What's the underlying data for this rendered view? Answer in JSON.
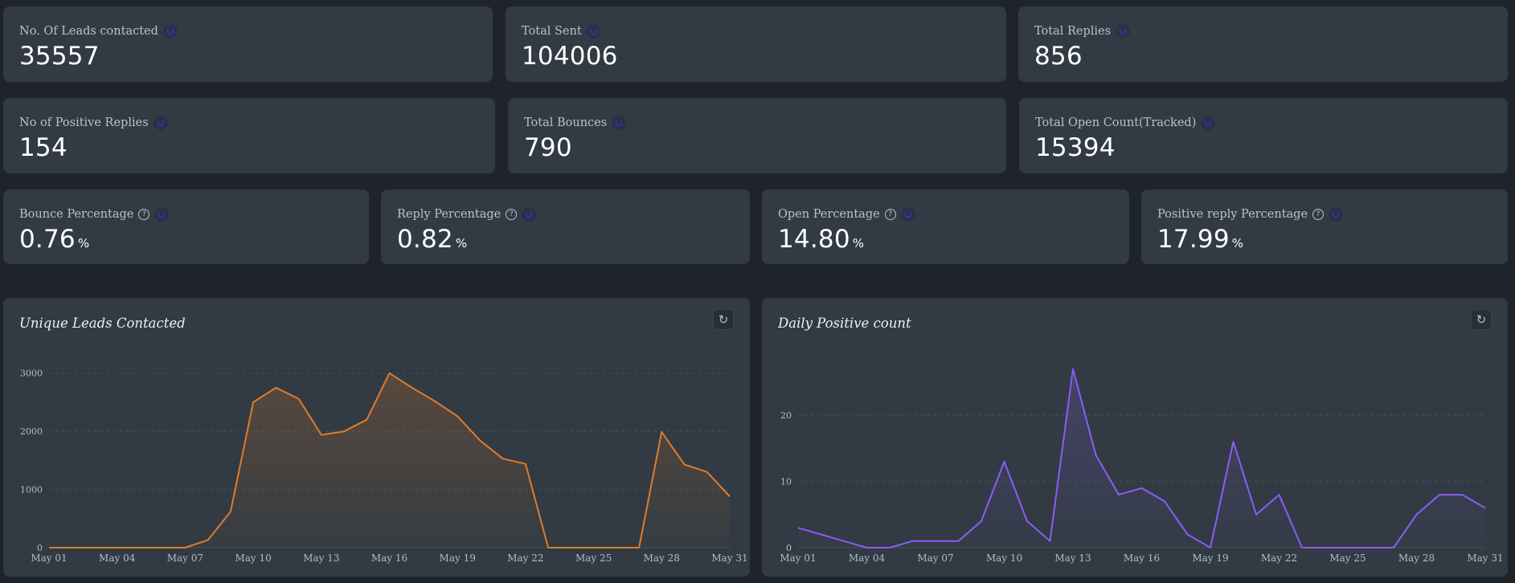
{
  "stats_row1": [
    {
      "label": "No. Of Leads contacted",
      "value": "35557"
    },
    {
      "label": "Total Sent",
      "value": "104006"
    },
    {
      "label": "Total Replies",
      "value": "856"
    }
  ],
  "stats_row2": [
    {
      "label": "No of Positive Replies",
      "value": "154"
    },
    {
      "label": "Total Bounces",
      "value": "790"
    },
    {
      "label": "Total Open Count(Tracked)",
      "value": "15394"
    }
  ],
  "stats_row3": [
    {
      "label": "Bounce Percentage",
      "value": "0.76",
      "unit": "%"
    },
    {
      "label": "Reply Percentage",
      "value": "0.82",
      "unit": "%"
    },
    {
      "label": "Open Percentage",
      "value": "14.80",
      "unit": "%"
    },
    {
      "label": "Positive reply Percentage",
      "value": "17.99",
      "unit": "%"
    }
  ],
  "icons": {
    "refresh": "refresh-icon",
    "help": "help-icon"
  },
  "colors": {
    "leads_line": "#e07b2a",
    "positive_line": "#8b5cf6"
  },
  "chart_data": [
    {
      "type": "area",
      "title": "Unique Leads Contacted",
      "x": [
        "May 01",
        "May 02",
        "May 03",
        "May 04",
        "May 05",
        "May 06",
        "May 07",
        "May 08",
        "May 09",
        "May 10",
        "May 11",
        "May 12",
        "May 13",
        "May 14",
        "May 15",
        "May 16",
        "May 17",
        "May 18",
        "May 19",
        "May 20",
        "May 21",
        "May 22",
        "May 23",
        "May 24",
        "May 25",
        "May 26",
        "May 27",
        "May 28",
        "May 29",
        "May 30",
        "May 31"
      ],
      "x_tick_labels": [
        "May 01",
        "May 04",
        "May 07",
        "May 10",
        "May 13",
        "May 16",
        "May 19",
        "May 22",
        "May 25",
        "May 28",
        "May 31"
      ],
      "series": [
        {
          "values": [
            0,
            0,
            0,
            0,
            0,
            0,
            0,
            130,
            620,
            2500,
            2750,
            2560,
            1940,
            2000,
            2200,
            3000,
            2750,
            2520,
            2260,
            1840,
            1530,
            1440,
            0,
            0,
            0,
            0,
            0,
            1990,
            1430,
            1300,
            880
          ]
        }
      ],
      "y_ticks": [
        0,
        1000,
        2000,
        3000
      ],
      "ylim": [
        0,
        3300
      ],
      "grid": true
    },
    {
      "type": "area",
      "title": "Daily Positive count",
      "x": [
        "May 01",
        "May 02",
        "May 03",
        "May 04",
        "May 05",
        "May 06",
        "May 07",
        "May 08",
        "May 09",
        "May 10",
        "May 11",
        "May 12",
        "May 13",
        "May 14",
        "May 15",
        "May 16",
        "May 17",
        "May 18",
        "May 19",
        "May 20",
        "May 21",
        "May 22",
        "May 23",
        "May 24",
        "May 25",
        "May 26",
        "May 27",
        "May 28",
        "May 29",
        "May 30",
        "May 31"
      ],
      "x_tick_labels": [
        "May 01",
        "May 04",
        "May 07",
        "May 10",
        "May 13",
        "May 16",
        "May 19",
        "May 22",
        "May 25",
        "May 28",
        "May 31"
      ],
      "series": [
        {
          "values": [
            3,
            2,
            1,
            0,
            0,
            1,
            1,
            1,
            4,
            13,
            4,
            1,
            27,
            14,
            8,
            9,
            7,
            2,
            0,
            16,
            5,
            8,
            0,
            0,
            0,
            0,
            0,
            5,
            8,
            8,
            6
          ]
        }
      ],
      "y_ticks": [
        0,
        10,
        20
      ],
      "ylim": [
        0,
        29
      ],
      "grid": true
    }
  ]
}
